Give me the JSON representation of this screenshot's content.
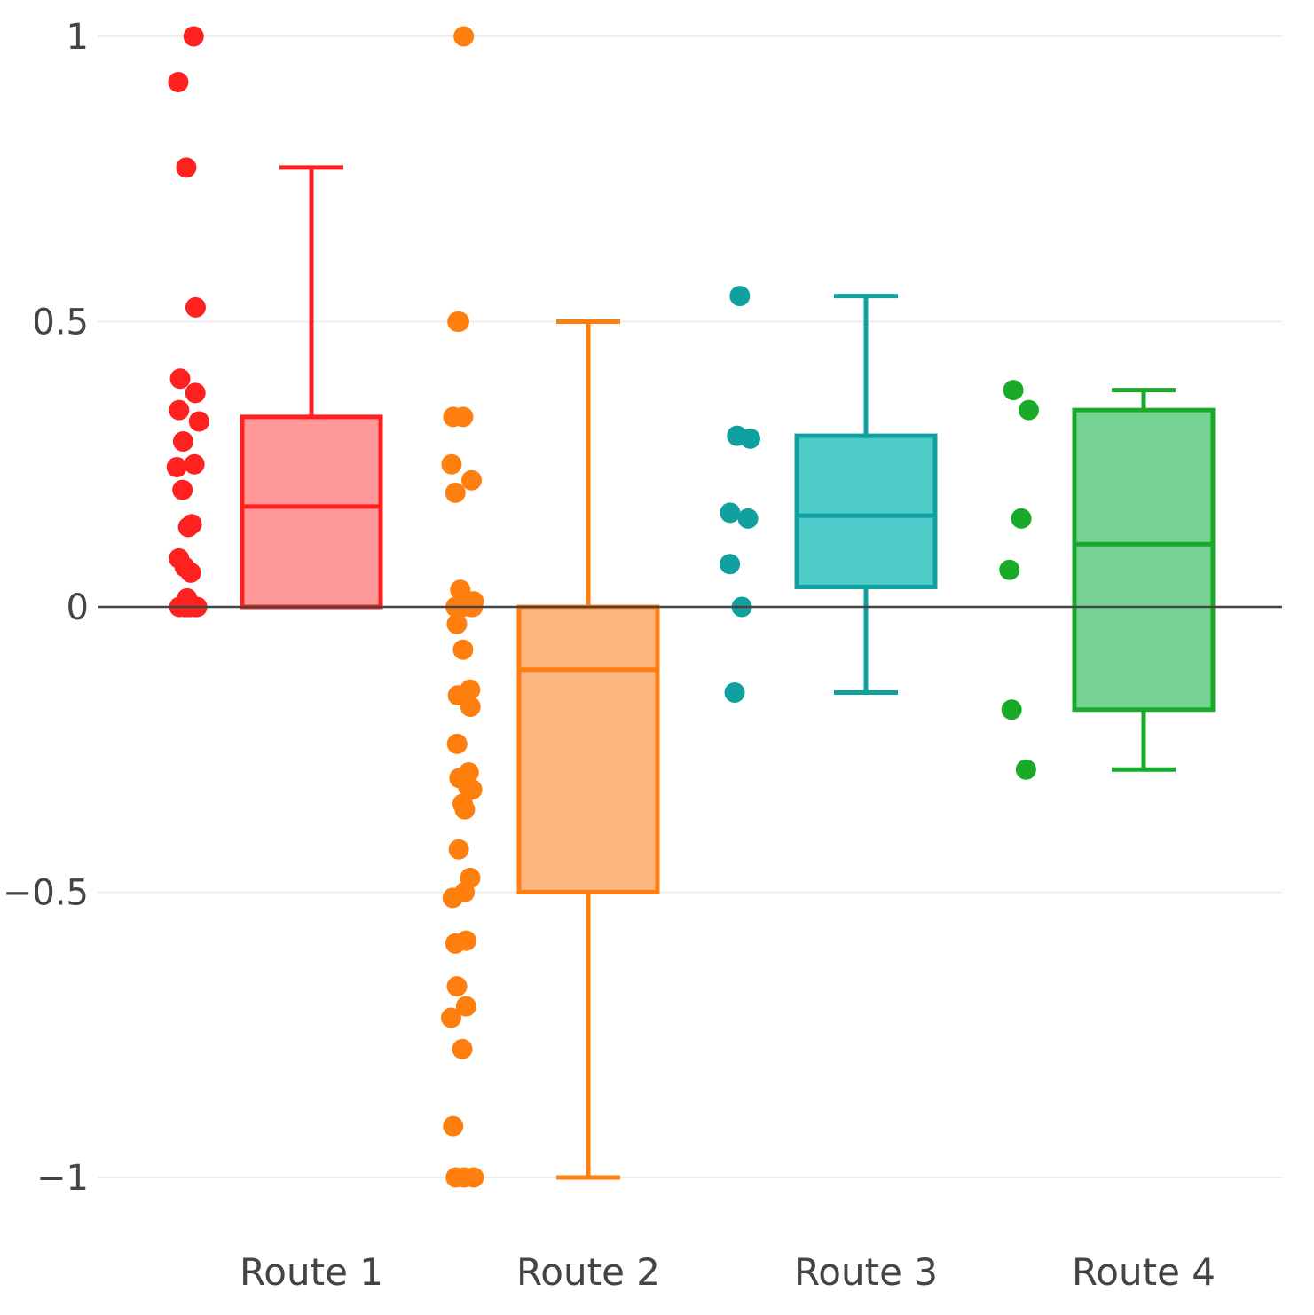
{
  "chart_data": {
    "type": "box",
    "title": "",
    "xlabel": "",
    "ylabel": "",
    "ylim": [
      -1.1,
      1.05
    ],
    "yticks": [
      1,
      0.5,
      0,
      -0.5,
      -1
    ],
    "ytick_labels": [
      "1",
      "0.5",
      "0",
      "−0.5",
      "−1"
    ],
    "grid": true,
    "zero_line": true,
    "categories": [
      "Route 1",
      "Route 2",
      "Route 3",
      "Route 4"
    ],
    "series": [
      {
        "color": "#ff2020",
        "fill": "#ff9999",
        "box": {
          "min": 0,
          "q1": 0,
          "median": 0.176,
          "q3": 0.333,
          "max": 0.77
        },
        "points": [
          1.0,
          0.92,
          0.77,
          0.525,
          0.4,
          0.375,
          0.345,
          0.325,
          0.29,
          0.25,
          0.245,
          0.205,
          0.145,
          0.14,
          0.085,
          0.07,
          0.06,
          0.015,
          0,
          0,
          0,
          0,
          0,
          0,
          0
        ]
      },
      {
        "color": "#ff7f0e",
        "fill": "#fdb57f",
        "box": {
          "min": -1.0,
          "q1": -0.5,
          "median": -0.11,
          "q3": 0,
          "max": 0.5
        },
        "points": [
          1.0,
          0.5,
          0.5,
          0.333,
          0.333,
          0.25,
          0.222,
          0.2,
          0.03,
          0.01,
          0,
          0,
          0,
          0,
          -0.03,
          -0.075,
          -0.145,
          -0.155,
          -0.175,
          -0.24,
          -0.29,
          -0.3,
          -0.315,
          -0.32,
          -0.345,
          -0.355,
          -0.425,
          -0.475,
          -0.5,
          -0.51,
          -0.585,
          -0.59,
          -0.665,
          -0.7,
          -0.72,
          -0.775,
          -0.91,
          -1.0,
          -1.0,
          -1.0
        ]
      },
      {
        "color": "#10a0a0",
        "fill": "#4dcbc8",
        "box": {
          "min": -0.15,
          "q1": 0.035,
          "median": 0.16,
          "q3": 0.3,
          "max": 0.545
        },
        "points": [
          0.545,
          0.3,
          0.295,
          0.165,
          0.155,
          0.075,
          0,
          -0.15
        ]
      },
      {
        "color": "#1aaa2a",
        "fill": "#77d394",
        "box": {
          "min": -0.285,
          "q1": -0.18,
          "median": 0.11,
          "q3": 0.345,
          "max": 0.38
        },
        "points": [
          0.38,
          0.345,
          0.155,
          0.065,
          -0.18,
          -0.285
        ]
      }
    ]
  }
}
